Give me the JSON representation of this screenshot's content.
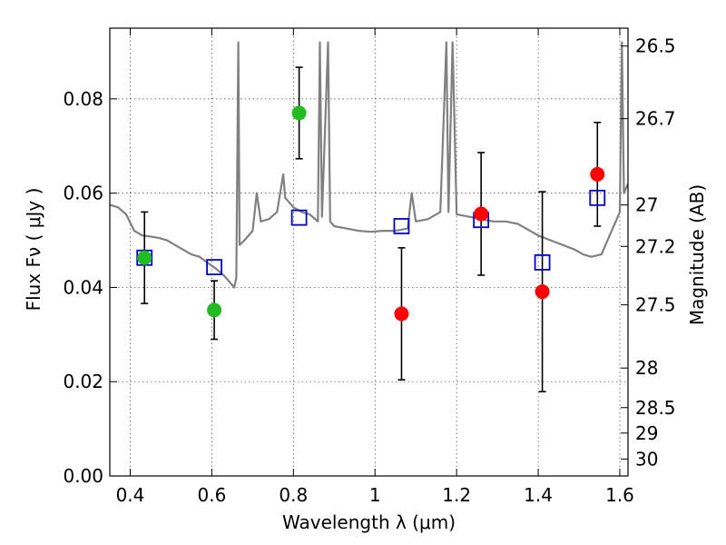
{
  "chart_data": {
    "type": "scatter",
    "xlabel": "Wavelength  λ (μm)",
    "ylabel": "Flux  Fν  ( μJy )",
    "y2label": "Magnitude (AB)",
    "xlim": [
      0.35,
      1.62
    ],
    "ylim": [
      0.0,
      0.095
    ],
    "x_ticks": [
      0.4,
      0.6,
      0.8,
      1.0,
      1.2,
      1.4,
      1.6
    ],
    "x_tick_labels": [
      "0.4",
      "0.6",
      "0.8",
      "1",
      "1.2",
      "1.4",
      "1.6"
    ],
    "y_ticks": [
      0.0,
      0.02,
      0.04,
      0.06,
      0.08
    ],
    "y_tick_labels": [
      "0.00",
      "0.02",
      "0.04",
      "0.06",
      "0.08"
    ],
    "mag_ticks": [
      {
        "flux": 0.0912,
        "label": "26.5"
      },
      {
        "flux": 0.0758,
        "label": "26.7"
      },
      {
        "flux": 0.0575,
        "label": "27"
      },
      {
        "flux": 0.0487,
        "label": "27.2"
      },
      {
        "flux": 0.0363,
        "label": "27.5"
      },
      {
        "flux": 0.0229,
        "label": "28"
      },
      {
        "flux": 0.0145,
        "label": "28.5"
      },
      {
        "flux": 0.0091,
        "label": "29"
      },
      {
        "flux": 0.0036,
        "label": "30"
      }
    ],
    "grid": true,
    "series": [
      {
        "marker": "circle",
        "color": "#22bb22",
        "points": [
          {
            "x": 0.435,
            "y": 0.0463,
            "yerr": 0.0097
          },
          {
            "x": 0.606,
            "y": 0.0352,
            "yerr": 0.0062
          },
          {
            "x": 0.814,
            "y": 0.077,
            "yerr": 0.0097
          }
        ]
      },
      {
        "marker": "circle",
        "color": "#ff0000",
        "points": [
          {
            "x": 1.065,
            "y": 0.0344,
            "yerr": 0.014
          },
          {
            "x": 1.26,
            "y": 0.0556,
            "yerr": 0.013
          },
          {
            "x": 1.41,
            "y": 0.0391,
            "yerr": 0.0212
          },
          {
            "x": 1.545,
            "y": 0.064,
            "yerr": 0.011
          }
        ]
      },
      {
        "marker": "open-square",
        "color": "#0000cc",
        "points": [
          {
            "x": 0.435,
            "y": 0.0463
          },
          {
            "x": 0.606,
            "y": 0.0443
          },
          {
            "x": 0.814,
            "y": 0.0548
          },
          {
            "x": 1.065,
            "y": 0.053
          },
          {
            "x": 1.26,
            "y": 0.0543
          },
          {
            "x": 1.41,
            "y": 0.0453
          },
          {
            "x": 1.545,
            "y": 0.059
          }
        ]
      },
      {
        "marker": "line",
        "color": "#808080",
        "points": [
          [
            0.35,
            0.0575
          ],
          [
            0.37,
            0.057
          ],
          [
            0.39,
            0.0555
          ],
          [
            0.41,
            0.052
          ],
          [
            0.43,
            0.051
          ],
          [
            0.45,
            0.0508
          ],
          [
            0.47,
            0.0505
          ],
          [
            0.49,
            0.05
          ],
          [
            0.51,
            0.049
          ],
          [
            0.53,
            0.048
          ],
          [
            0.55,
            0.047
          ],
          [
            0.57,
            0.0465
          ],
          [
            0.59,
            0.0452
          ],
          [
            0.61,
            0.044
          ],
          [
            0.63,
            0.0425
          ],
          [
            0.645,
            0.041
          ],
          [
            0.655,
            0.04
          ],
          [
            0.66,
            0.042
          ],
          [
            0.665,
            0.092
          ],
          [
            0.668,
            0.049
          ],
          [
            0.68,
            0.05
          ],
          [
            0.7,
            0.052
          ],
          [
            0.71,
            0.06
          ],
          [
            0.72,
            0.054
          ],
          [
            0.74,
            0.0545
          ],
          [
            0.76,
            0.056
          ],
          [
            0.775,
            0.064
          ],
          [
            0.78,
            0.059
          ],
          [
            0.8,
            0.057
          ],
          [
            0.82,
            0.056
          ],
          [
            0.84,
            0.0555
          ],
          [
            0.86,
            0.054
          ],
          [
            0.865,
            0.092
          ],
          [
            0.87,
            0.055
          ],
          [
            0.885,
            0.092
          ],
          [
            0.89,
            0.054
          ],
          [
            0.9,
            0.053
          ],
          [
            0.93,
            0.0525
          ],
          [
            0.96,
            0.052
          ],
          [
            0.99,
            0.0518
          ],
          [
            1.02,
            0.052
          ],
          [
            1.05,
            0.052
          ],
          [
            1.08,
            0.0525
          ],
          [
            1.09,
            0.06
          ],
          [
            1.1,
            0.054
          ],
          [
            1.13,
            0.0545
          ],
          [
            1.16,
            0.056
          ],
          [
            1.175,
            0.092
          ],
          [
            1.18,
            0.056
          ],
          [
            1.19,
            0.092
          ],
          [
            1.2,
            0.0555
          ],
          [
            1.23,
            0.055
          ],
          [
            1.26,
            0.0545
          ],
          [
            1.29,
            0.054
          ],
          [
            1.32,
            0.054
          ],
          [
            1.35,
            0.0535
          ],
          [
            1.38,
            0.052
          ],
          [
            1.4,
            0.051
          ],
          [
            1.43,
            0.05
          ],
          [
            1.46,
            0.049
          ],
          [
            1.49,
            0.048
          ],
          [
            1.51,
            0.047
          ],
          [
            1.53,
            0.0465
          ],
          [
            1.555,
            0.047
          ],
          [
            1.57,
            0.05
          ],
          [
            1.59,
            0.054
          ],
          [
            1.6,
            0.056
          ],
          [
            1.605,
            0.092
          ],
          [
            1.61,
            0.06
          ],
          [
            1.62,
            0.062
          ]
        ]
      }
    ]
  }
}
